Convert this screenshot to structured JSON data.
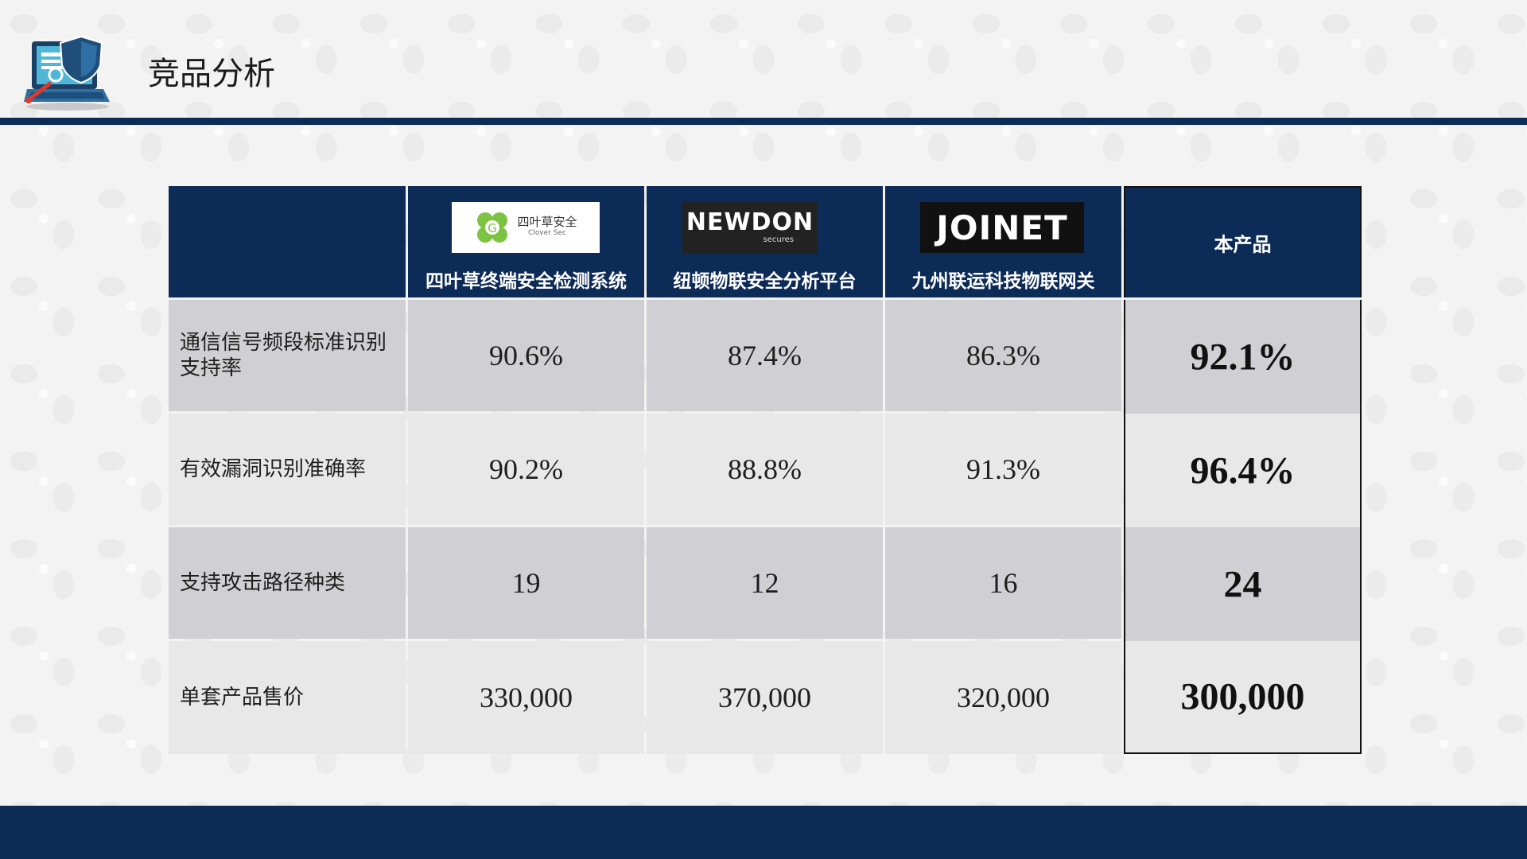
{
  "page": {
    "title": "竞品分析"
  },
  "logo_icon": "laptop-shield-security-icon",
  "colors": {
    "navy": "#0d2b57",
    "row_dark": "#d0d0d4",
    "row_light": "#e8e8e8"
  },
  "table": {
    "competitors": [
      {
        "name": "四叶草终端安全检测系统",
        "brand": {
          "text": "四叶草安全",
          "sub": "Clover Sec",
          "icon": "clover-icon"
        }
      },
      {
        "name": "纽顿物联安全分析平台",
        "brand": {
          "text": "NEWDON",
          "sub": "secures"
        }
      },
      {
        "name": "九州联运科技物联网关",
        "brand": {
          "text": "JOINET"
        }
      }
    ],
    "our_product_label": "本产品",
    "rows": [
      {
        "label": "通信信号频段标准识别支持率",
        "values": [
          "90.6%",
          "87.4%",
          "86.3%"
        ],
        "ours": "92.1%"
      },
      {
        "label": "有效漏洞识别准确率",
        "values": [
          "90.2%",
          "88.8%",
          "91.3%"
        ],
        "ours": "96.4%"
      },
      {
        "label": "支持攻击路径种类",
        "values": [
          "19",
          "12",
          "16"
        ],
        "ours": "24"
      },
      {
        "label": "单套产品售价",
        "values": [
          "330,000",
          "370,000",
          "320,000"
        ],
        "ours": "300,000"
      }
    ]
  }
}
